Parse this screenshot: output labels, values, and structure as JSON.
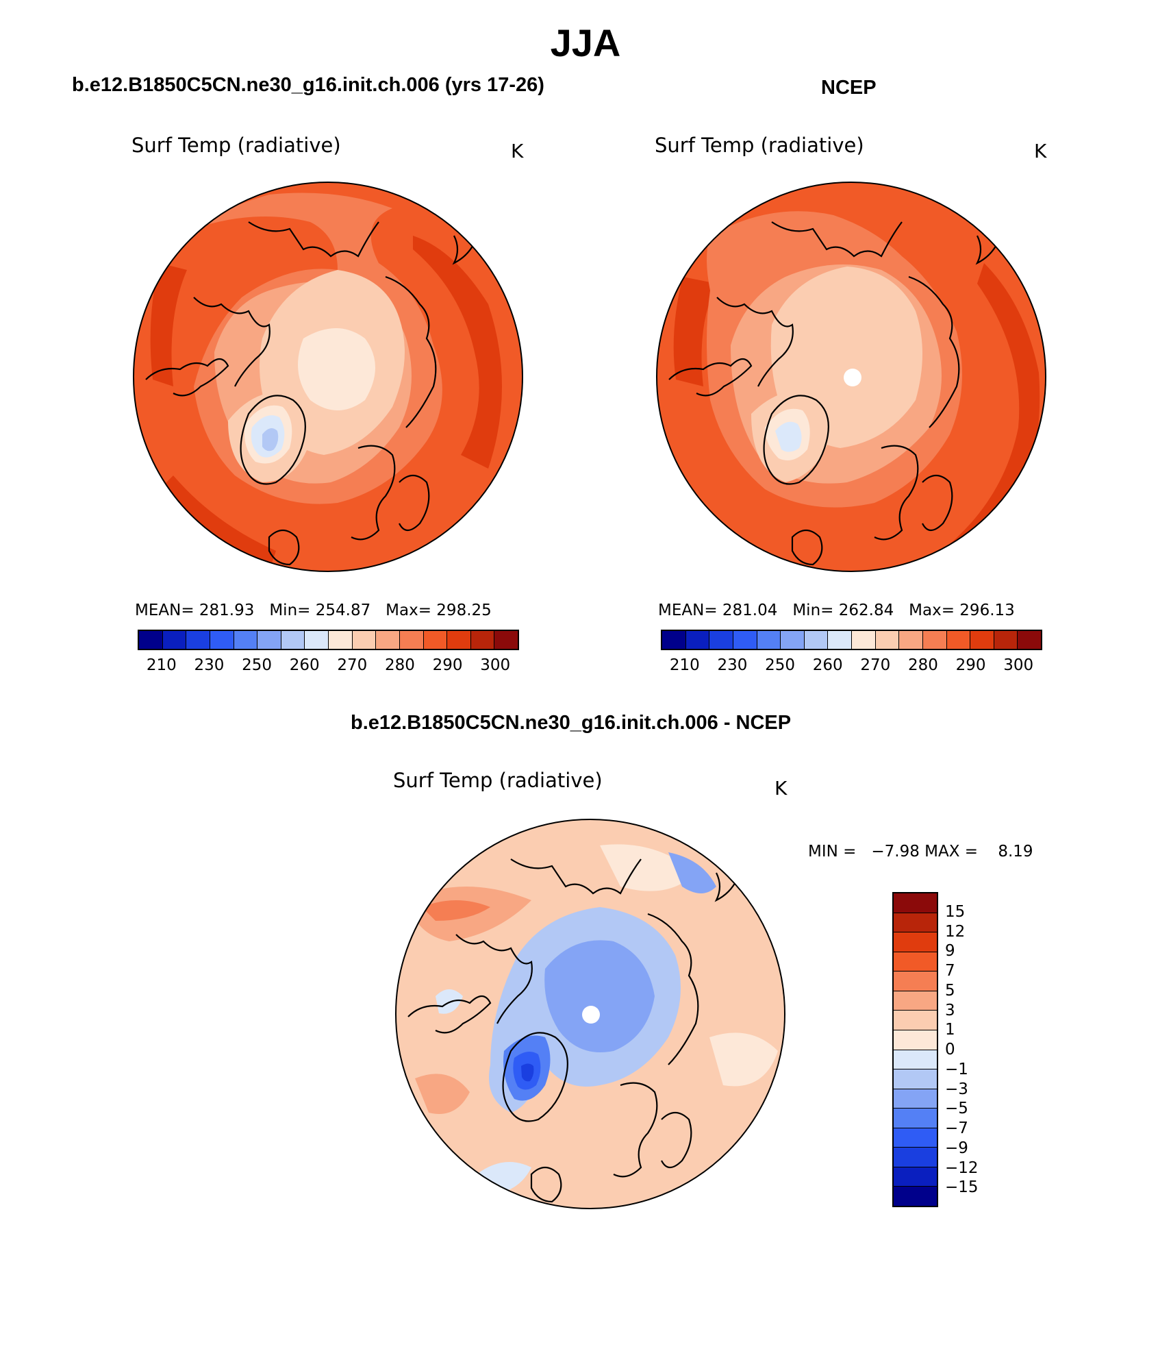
{
  "title": "JJA",
  "panels": [
    {
      "id": "model",
      "heading": "b.e12.B1850C5CN.ne30_g16.init.ch.006 (yrs 17-26)",
      "variable": "Surf Temp (radiative)",
      "units": "K",
      "stats": {
        "mean_label": "MEAN=",
        "mean": "281.93",
        "min_label": "Min=",
        "min": "254.87",
        "max_label": "Max=",
        "max": "298.25"
      }
    },
    {
      "id": "obs",
      "heading": "NCEP",
      "variable": "Surf Temp (radiative)",
      "units": "K",
      "stats": {
        "mean_label": "MEAN=",
        "mean": "281.04",
        "min_label": "Min=",
        "min": "262.84",
        "max_label": "Max=",
        "max": "296.13"
      }
    },
    {
      "id": "diff",
      "heading": "b.e12.B1850C5CN.ne30_g16.init.ch.006 - NCEP",
      "variable": "Surf Temp (radiative)",
      "units": "K",
      "stats": {
        "min_label": "MIN =",
        "min": "−7.98",
        "max_label": "MAX =",
        "max": "8.19"
      }
    }
  ],
  "abs_colorbar": {
    "colors": [
      "#00008b",
      "#0a1fbf",
      "#1a3fe0",
      "#2f5cf5",
      "#5480f5",
      "#84a4f5",
      "#b2c8f5",
      "#dbe8fa",
      "#fde8d8",
      "#fbcdb1",
      "#f8a783",
      "#f57e53",
      "#f15a27",
      "#e03c0e",
      "#b8250a",
      "#8b0a0a"
    ],
    "labels": [
      "210",
      "230",
      "250",
      "260",
      "270",
      "280",
      "290",
      "300"
    ]
  },
  "diff_colorbar": {
    "colors": [
      "#8b0a0a",
      "#b8250a",
      "#e03c0e",
      "#f15a27",
      "#f57e53",
      "#f8a783",
      "#fbcdb1",
      "#fde8d8",
      "#dbe8fa",
      "#b2c8f5",
      "#84a4f5",
      "#5480f5",
      "#2f5cf5",
      "#1a3fe0",
      "#0a1fbf",
      "#00008b"
    ],
    "labels": [
      "15",
      "12",
      "9",
      "7",
      "5",
      "3",
      "1",
      "0",
      "−1",
      "−3",
      "−5",
      "−7",
      "−9",
      "−12",
      "−15"
    ]
  }
}
